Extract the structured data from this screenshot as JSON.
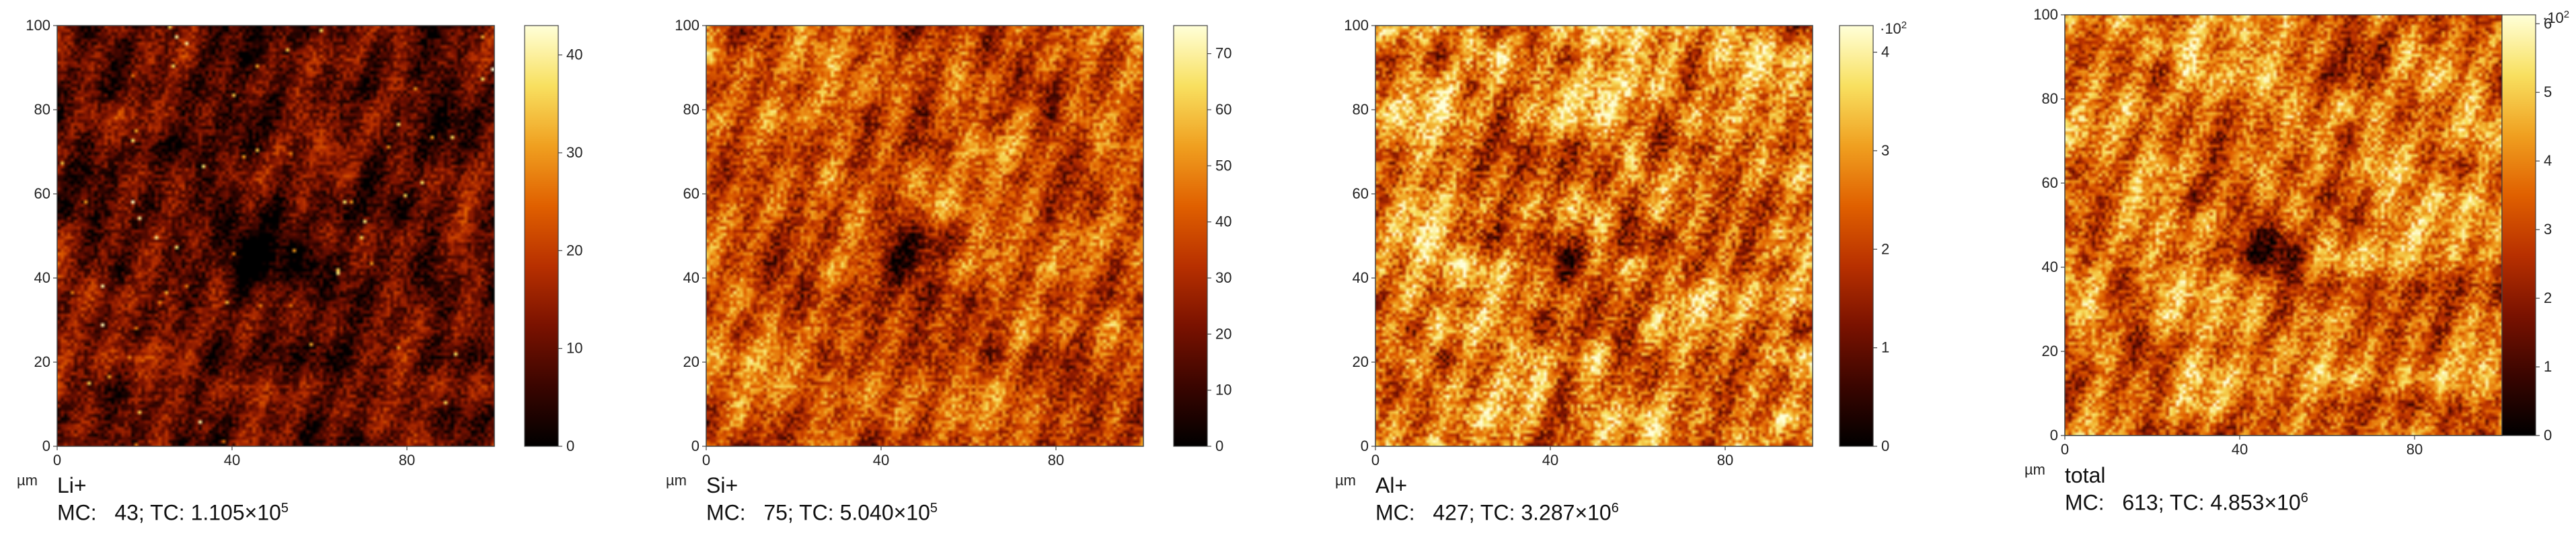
{
  "chart_data": [
    {
      "type": "heatmap",
      "species": "Li+",
      "unit": "µm",
      "xticks": [
        "0",
        "40",
        "80"
      ],
      "yticks": [
        "0",
        "20",
        "40",
        "60",
        "80",
        "100"
      ],
      "xlim": [
        0,
        100
      ],
      "ylim": [
        0,
        100
      ],
      "colorbar": {
        "ticks": [
          "0",
          "10",
          "20",
          "30",
          "40"
        ],
        "max": 43,
        "exponent": ""
      },
      "stats": {
        "mc_label": "MC:",
        "mc": "43",
        "tc_label": "TC:",
        "tc_mantissa": "1.105",
        "tc_exp": "5"
      },
      "palette": [
        "#000000",
        "#3a0500",
        "#7a1200",
        "#b83000",
        "#e06000",
        "#f0a020",
        "#f8e060",
        "#ffffd8"
      ],
      "mean_level": 0.22,
      "contrast": 0.16
    },
    {
      "type": "heatmap",
      "species": "Si+",
      "unit": "µm",
      "xticks": [
        "0",
        "40",
        "80"
      ],
      "yticks": [
        "0",
        "20",
        "40",
        "60",
        "80",
        "100"
      ],
      "xlim": [
        0,
        100
      ],
      "ylim": [
        0,
        100
      ],
      "colorbar": {
        "ticks": [
          "0",
          "10",
          "20",
          "30",
          "40",
          "50",
          "60",
          "70"
        ],
        "max": 75,
        "exponent": ""
      },
      "stats": {
        "mc_label": "MC:",
        "mc": "75",
        "tc_label": "TC:",
        "tc_mantissa": "5.040",
        "tc_exp": "5"
      },
      "palette": [
        "#000000",
        "#3a0500",
        "#7a1200",
        "#b83000",
        "#e06000",
        "#f0a020",
        "#f8e060",
        "#ffffd8"
      ],
      "mean_level": 0.5,
      "contrast": 0.2
    },
    {
      "type": "heatmap",
      "species": "Al+",
      "unit": "µm",
      "xticks": [
        "0",
        "40",
        "80"
      ],
      "yticks": [
        "0",
        "20",
        "40",
        "60",
        "80",
        "100"
      ],
      "xlim": [
        0,
        100
      ],
      "ylim": [
        0,
        100
      ],
      "colorbar": {
        "ticks": [
          "0",
          "1",
          "2",
          "3",
          "4"
        ],
        "max": 4.27,
        "exponent": "2"
      },
      "stats": {
        "mc_label": "MC:",
        "mc": "427",
        "tc_label": "TC:",
        "tc_mantissa": "3.287",
        "tc_exp": "6"
      },
      "palette": [
        "#000000",
        "#3a0500",
        "#7a1200",
        "#b83000",
        "#e06000",
        "#f0a020",
        "#f8e060",
        "#ffffd8"
      ],
      "mean_level": 0.62,
      "contrast": 0.24
    },
    {
      "type": "heatmap",
      "species": "total",
      "unit": "µm",
      "xticks": [
        "0",
        "40",
        "80"
      ],
      "yticks": [
        "0",
        "20",
        "40",
        "60",
        "80",
        "100"
      ],
      "xlim": [
        0,
        100
      ],
      "ylim": [
        0,
        100
      ],
      "colorbar": {
        "ticks": [
          "0",
          "1",
          "2",
          "3",
          "4",
          "5",
          "6"
        ],
        "max": 6.13,
        "exponent": "2"
      },
      "stats": {
        "mc_label": "MC:",
        "mc": "613",
        "tc_label": "TC:",
        "tc_mantissa": "4.853",
        "tc_exp": "6"
      },
      "palette": [
        "#000000",
        "#3a0500",
        "#7a1200",
        "#b83000",
        "#e06000",
        "#f0a020",
        "#f8e060",
        "#ffffd8"
      ],
      "mean_level": 0.58,
      "contrast": 0.22
    }
  ]
}
